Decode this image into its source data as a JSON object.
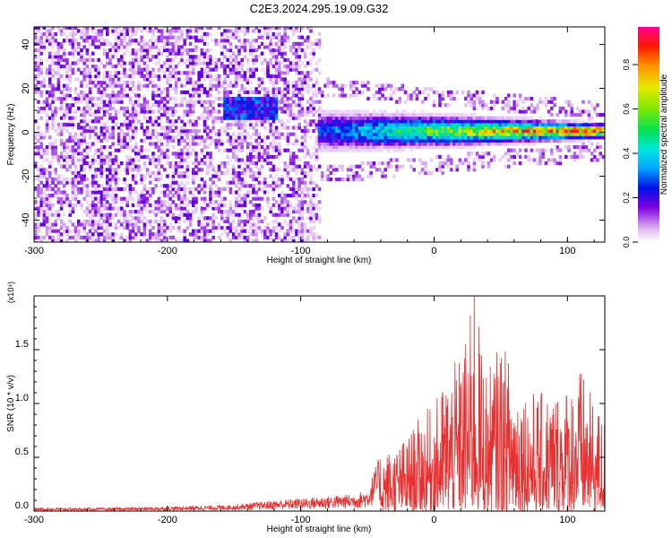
{
  "title": "C2E3.2024.295.19.09.G32",
  "chart_data": [
    {
      "type": "heatmap",
      "xlabel": "Height of straight line (km)",
      "ylabel": "Frequency (Hz)",
      "xlim": [
        -300,
        128
      ],
      "ylim": [
        -50,
        48
      ],
      "xticks": [
        -300,
        -200,
        -100,
        0,
        100
      ],
      "xtick_labels": [
        "-300",
        "-200",
        "-100",
        "0",
        "100"
      ],
      "yticks": [
        -40,
        -20,
        0,
        20,
        40
      ],
      "ytick_labels": [
        "-40",
        "-20",
        "0",
        "20",
        "40"
      ],
      "colorbar": {
        "label": "Normalized spectral amplitude",
        "range": [
          0,
          0.97
        ],
        "ticks": [
          0.0,
          0.2,
          0.4,
          0.6,
          0.8
        ],
        "tick_labels": [
          "0.0",
          "0.2",
          "0.4",
          "0.6",
          "0.8"
        ],
        "colormap": [
          "#ffffff",
          "#e2bdf2",
          "#7a00e0",
          "#0018e8",
          "#00a8ff",
          "#00e8d8",
          "#00e060",
          "#90e800",
          "#e8e800",
          "#ff9000",
          "#ff2000",
          "#ff0090"
        ]
      },
      "features": {
        "noise_region_x": [
          -300,
          -85
        ],
        "noise_region_y": [
          -50,
          48
        ],
        "noise_level": 0.15,
        "blob_x": [
          -160,
          -118
        ],
        "blob_y": [
          5,
          15
        ],
        "signal_start_x": -88,
        "signal_center_y": 0,
        "signal_peak_level": 0.97
      }
    },
    {
      "type": "line",
      "xlabel": "Height of straight line (km)",
      "ylabel": "SNR (10 * v/v)",
      "y_multiplier": "(x10⁴)",
      "xlim": [
        -300,
        128
      ],
      "ylim": [
        0,
        2.0
      ],
      "xticks": [
        -300,
        -200,
        -100,
        0,
        100
      ],
      "xtick_labels": [
        "-300",
        "-200",
        "-100",
        "0",
        "100"
      ],
      "yticks": [
        0.0,
        0.5,
        1.0,
        1.5
      ],
      "ytick_labels": [
        "0.0",
        "0.5",
        "1.0",
        "1.5"
      ],
      "series": [
        {
          "color": "#e83030",
          "envelope": {
            "x": [
              -300,
              -250,
              -200,
              -150,
              -120,
              -100,
              -80,
              -60,
              -50,
              -40,
              -30,
              -20,
              -10,
              0,
              10,
              20,
              30,
              40,
              50,
              60,
              70,
              80,
              90,
              100,
              110,
              120,
              128
            ],
            "y_max": [
              0.03,
              0.03,
              0.04,
              0.06,
              0.1,
              0.12,
              0.14,
              0.16,
              0.2,
              0.55,
              0.6,
              0.7,
              0.9,
              1.0,
              1.3,
              1.45,
              2.0,
              1.3,
              1.6,
              1.35,
              1.15,
              1.1,
              1.15,
              1.2,
              1.35,
              1.0,
              0.9
            ]
          },
          "peak": {
            "x": 30,
            "y": 2.0
          }
        }
      ]
    }
  ]
}
